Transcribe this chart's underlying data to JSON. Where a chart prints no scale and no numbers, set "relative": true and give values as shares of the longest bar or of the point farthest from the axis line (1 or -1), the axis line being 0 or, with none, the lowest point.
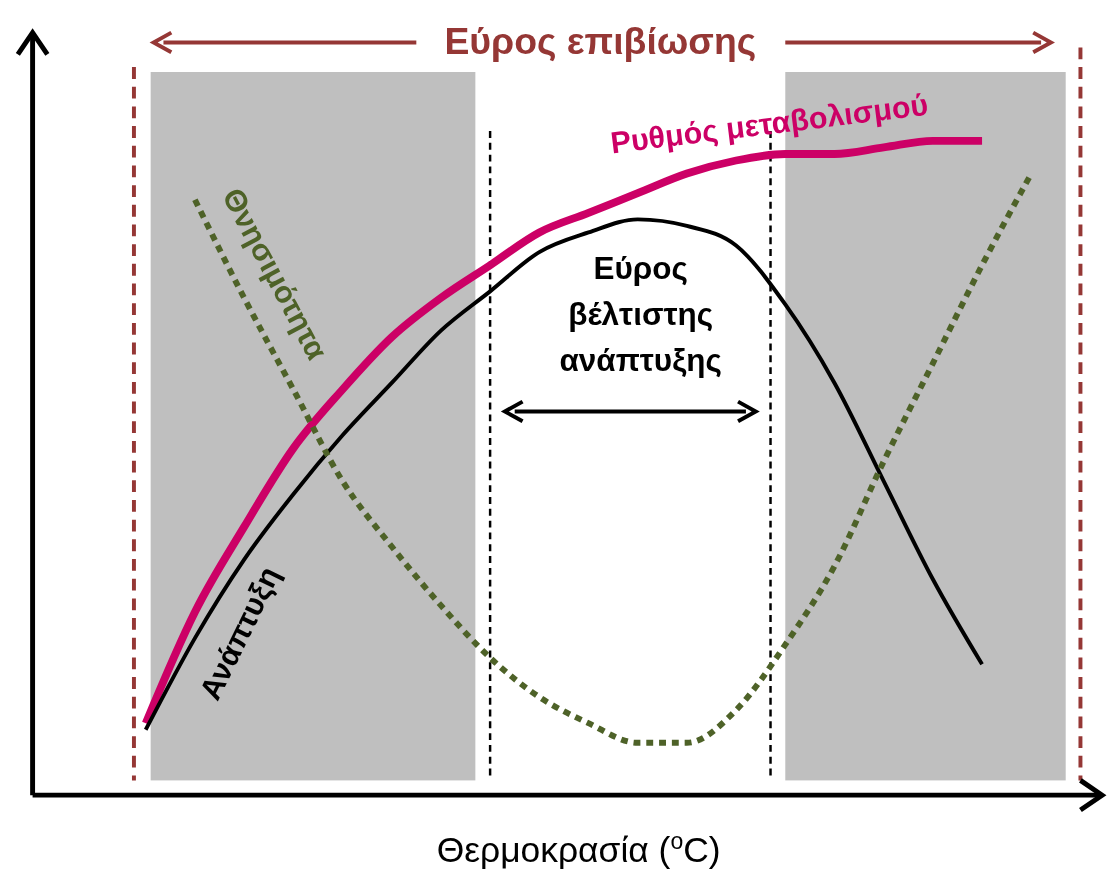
{
  "chart_data": {
    "type": "line",
    "relative": true,
    "xlabel": "Θερμοκρασία ($^{o}$C)",
    "categories": [
      null,
      null,
      null,
      null,
      null,
      null,
      null,
      null,
      null,
      null,
      null,
      null,
      null,
      null,
      null,
      null,
      null,
      null,
      null
    ],
    "series": [
      {
        "name": "Ρυθμός μεταβολισμού",
        "color": "#cc0066",
        "line_style": "solid",
        "values": [
          0.11,
          0.28,
          0.41,
          0.53,
          0.62,
          0.7,
          0.76,
          0.81,
          0.86,
          0.89,
          0.92,
          0.95,
          0.97,
          0.98,
          0.98,
          0.99,
          1.0,
          1.0,
          null
        ]
      },
      {
        "name": "Ανάπτυξη",
        "color": "#000000",
        "line_style": "solid",
        "values": [
          0.1,
          0.24,
          0.36,
          0.46,
          0.55,
          0.63,
          0.71,
          0.77,
          0.83,
          0.86,
          0.88,
          0.87,
          0.84,
          0.75,
          0.63,
          0.48,
          0.33,
          0.2,
          null
        ]
      },
      {
        "name": "Θνησιμότητα",
        "color": "#4e6228",
        "line_style": "dotted",
        "values": [
          null,
          0.91,
          0.76,
          0.62,
          0.48,
          0.38,
          0.29,
          0.21,
          0.15,
          0.11,
          0.08,
          0.08,
          0.13,
          0.23,
          0.35,
          0.51,
          0.66,
          0.81,
          0.95
        ]
      }
    ],
    "annotations": [
      "Εύρος επιβίωσης",
      "Εύρος βέλτιστης ανάπτυξης"
    ],
    "legend": false
  }
}
